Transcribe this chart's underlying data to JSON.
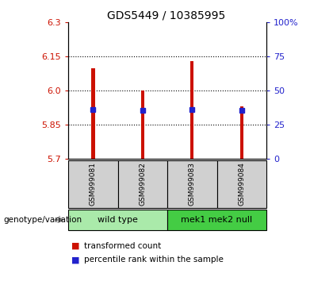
{
  "title": "GDS5449 / 10385995",
  "samples": [
    "GSM999081",
    "GSM999082",
    "GSM999083",
    "GSM999084"
  ],
  "bar_bottoms": [
    5.7,
    5.7,
    5.7,
    5.7
  ],
  "bar_tops": [
    6.1,
    6.0,
    6.13,
    5.93
  ],
  "blue_markers": [
    5.915,
    5.912,
    5.918,
    5.912
  ],
  "ymin": 5.7,
  "ymax": 6.3,
  "yticks_left": [
    5.7,
    5.85,
    6.0,
    6.15,
    6.3
  ],
  "yticks_right": [
    0,
    25,
    50,
    75,
    100
  ],
  "yticks_right_labels": [
    "0",
    "25",
    "50",
    "75",
    "100%"
  ],
  "bar_color": "#cc1100",
  "blue_color": "#2222cc",
  "groups": [
    {
      "label": "wild type",
      "indices": [
        0,
        1
      ],
      "color": "#aaeaaa"
    },
    {
      "label": "mek1 mek2 null",
      "indices": [
        2,
        3
      ],
      "color": "#44cc44"
    }
  ],
  "genotype_label": "genotype/variation",
  "legend_items": [
    {
      "color": "#cc1100",
      "label": "transformed count"
    },
    {
      "color": "#2222cc",
      "label": "percentile rank within the sample"
    }
  ],
  "sample_box_color": "#d0d0d0",
  "bar_width": 0.07
}
